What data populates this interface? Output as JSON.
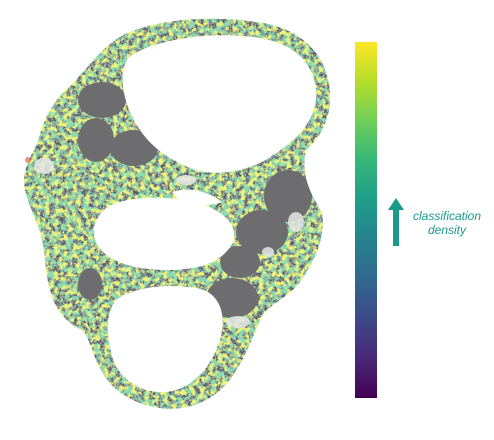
{
  "figure": {
    "colorbar": {
      "colormap": "viridis",
      "stops": [
        "#fde725",
        "#b5de2b",
        "#6ece58",
        "#35b779",
        "#1f9e89",
        "#26828e",
        "#31688e",
        "#3e4989",
        "#482878",
        "#440154"
      ],
      "direction": "high-at-top"
    },
    "annotation": {
      "line1": "classification",
      "line2": "density",
      "color": "#1a9b8a",
      "arrow_icon": "arrow-up-icon"
    },
    "tissue": {
      "background_color": "#4a4f5c",
      "nucleus_color": "#6d6d70"
    }
  }
}
